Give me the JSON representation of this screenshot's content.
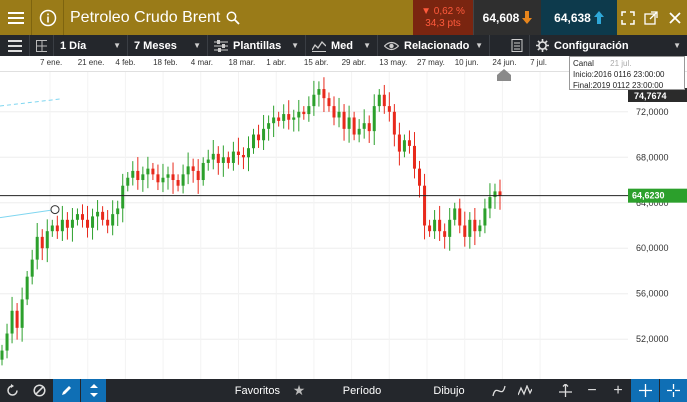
{
  "header": {
    "title": "Petroleo Crudo Brent",
    "change_pct": "▼ 0,62 %",
    "change_pts": "34,3 pts",
    "sell_price": "64,608",
    "buy_price": "64,638"
  },
  "toolbar": {
    "interval": "1 Día",
    "range": "7 Meses",
    "templates": "Plantillas",
    "average": "Med",
    "related": "Relacionado",
    "settings": "Configuración"
  },
  "date_axis": [
    "7 ene.",
    "21 ene.",
    "4 feb.",
    "18 feb.",
    "4 mar.",
    "18 mar.",
    "1 abr.",
    "15 abr.",
    "29 abr.",
    "13 may.",
    "27 may.",
    "10 jun.",
    "24 jun.",
    "7 jul."
  ],
  "info_box": {
    "line1": "Canal",
    "line1_extra": "21 jul.",
    "line2": "Inicio:2016 0116 23:00:00",
    "line3": "Final:2019 0112 23:00:00"
  },
  "price_axis": {
    "top_value": "74,7674",
    "current_value": "64,6230",
    "ticks": [
      "72,0000",
      "68,0000",
      "64,0000",
      "60,0000",
      "56,0000",
      "52,0000"
    ]
  },
  "bottom_bar": {
    "favorites": "Favoritos",
    "period": "Período",
    "drawing": "Dibujo"
  },
  "colors": {
    "up": "#2ca02c",
    "down": "#e8291c",
    "header": "#9a7b18",
    "toolbar": "#24272c",
    "current_price_bg": "#2ca02c",
    "top_value_bg": "#2b2b2b"
  },
  "chart_data": {
    "type": "candlestick",
    "ylim": [
      48.5,
      75.5
    ],
    "x_labels": [
      "7 ene.",
      "21 ene.",
      "4 feb.",
      "18 feb.",
      "4 mar.",
      "18 mar.",
      "1 abr.",
      "15 abr.",
      "29 abr.",
      "13 may.",
      "27 may.",
      "10 jun.",
      "24 jun.",
      "7 jul."
    ],
    "current_price": 64.623,
    "close": [
      51.0,
      52.5,
      54.5,
      53.0,
      55.5,
      57.5,
      59.0,
      61.0,
      60.0,
      61.5,
      62.0,
      61.5,
      62.5,
      61.8,
      62.5,
      63.0,
      62.5,
      61.8,
      62.8,
      63.2,
      62.5,
      62.0,
      63.0,
      63.5,
      65.5,
      66.2,
      66.8,
      66.0,
      66.5,
      67.0,
      66.5,
      65.8,
      66.2,
      66.5,
      66.0,
      65.5,
      66.5,
      67.2,
      66.8,
      66.0,
      67.5,
      67.8,
      68.3,
      67.5,
      68.0,
      67.5,
      68.5,
      68.2,
      68.0,
      68.8,
      70.0,
      69.5,
      70.5,
      71.0,
      71.5,
      71.2,
      71.8,
      71.3,
      71.5,
      72.0,
      71.8,
      72.5,
      73.5,
      74.0,
      73.2,
      72.5,
      71.5,
      72.0,
      70.5,
      71.5,
      70.0,
      70.5,
      71.0,
      70.3,
      72.5,
      73.5,
      72.5,
      72.0,
      70.0,
      68.5,
      69.5,
      69.0,
      67.0,
      65.5,
      62.0,
      61.5,
      62.5,
      61.5,
      61.0,
      62.5,
      63.5,
      62.0,
      61.0,
      62.5,
      61.5,
      62.0,
      63.5,
      64.5,
      65.0,
      64.6
    ]
  },
  "sketch_line": {
    "value": 63.4,
    "marker_value": 63.4
  }
}
